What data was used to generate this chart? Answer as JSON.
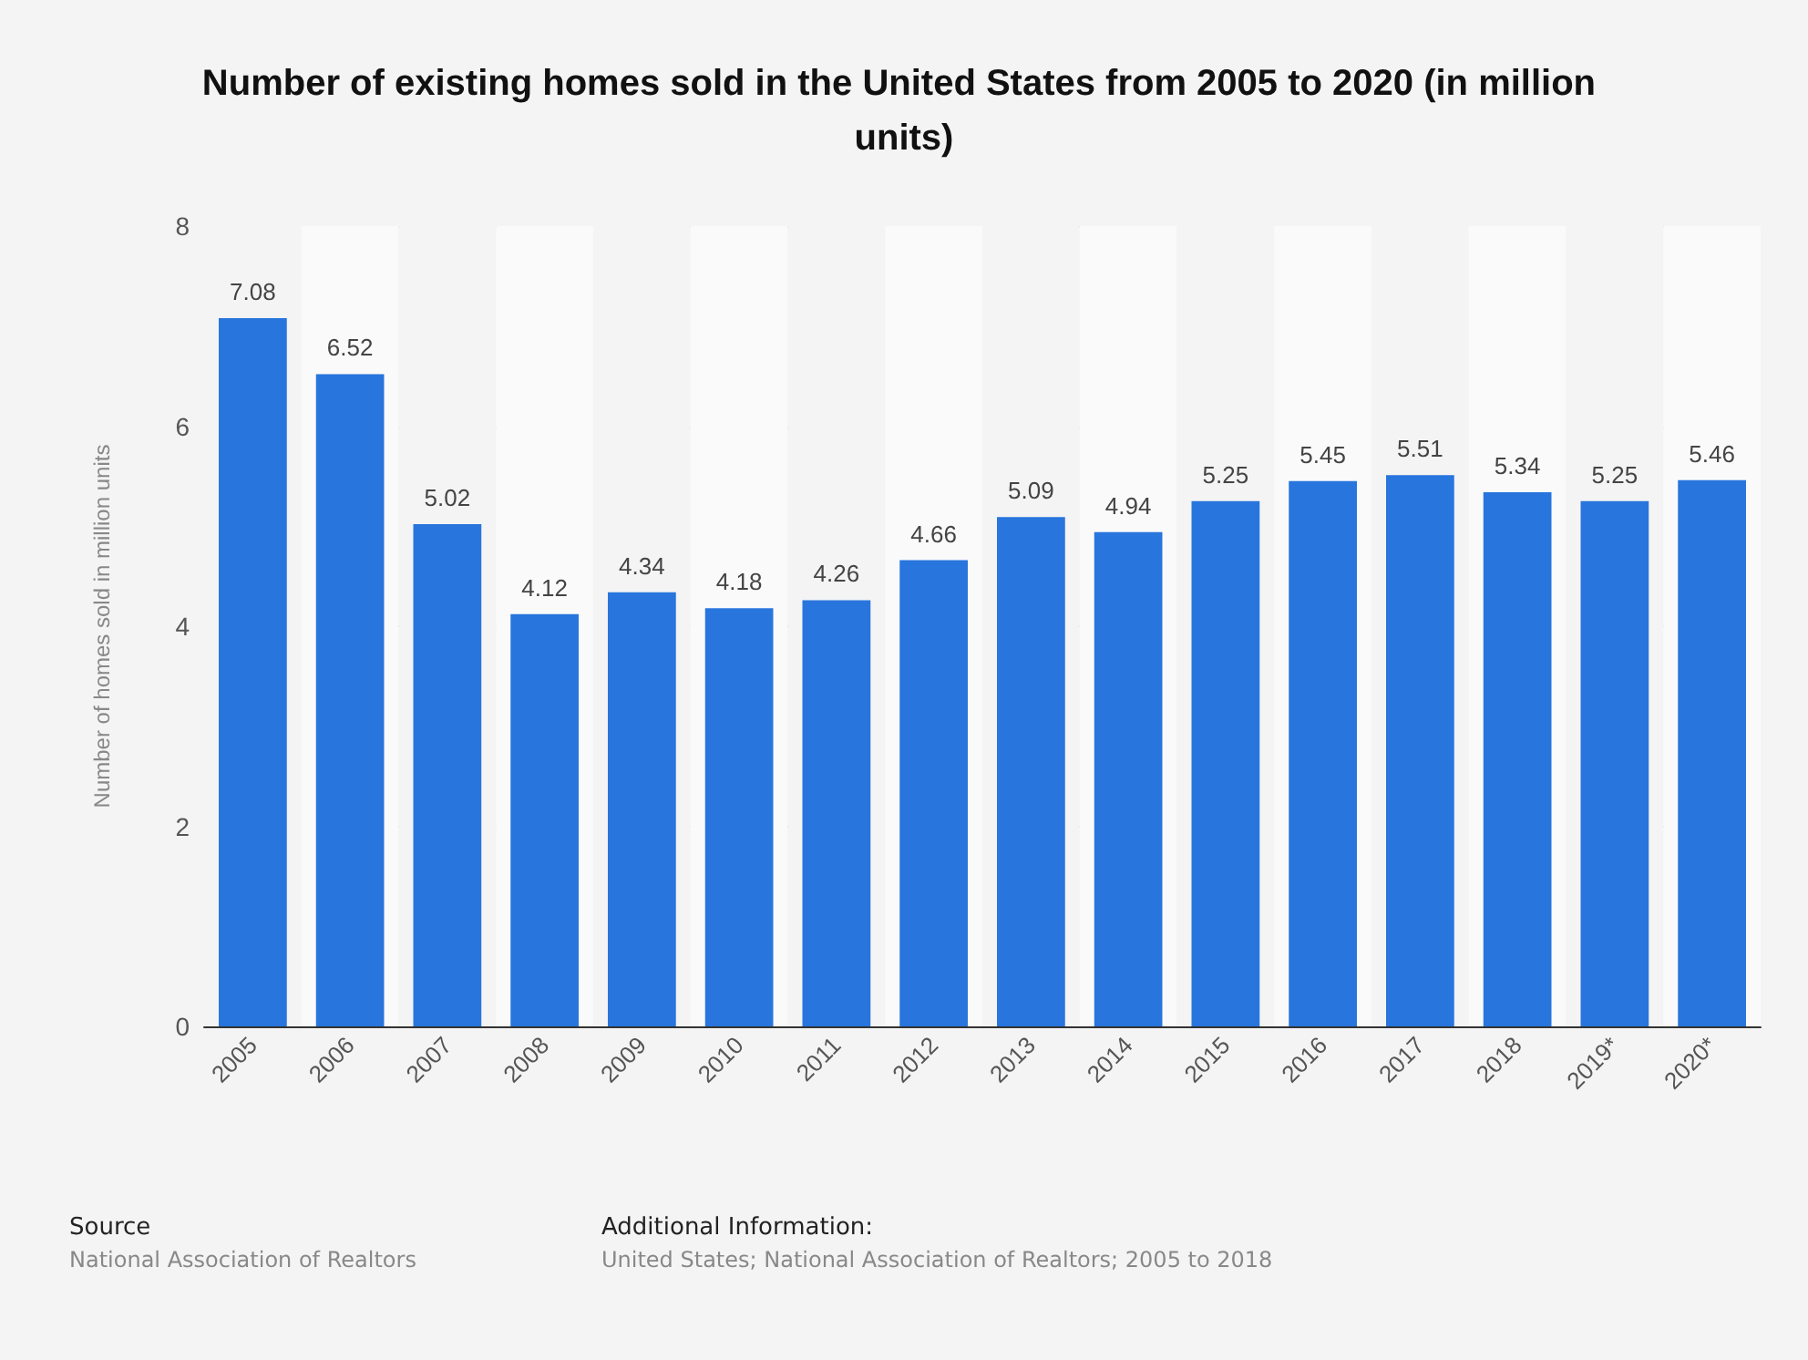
{
  "chart_data": {
    "type": "bar",
    "title": "Number of existing homes sold in the United States from 2005 to 2020 (in million units)",
    "ylabel": "Number of homes sold in million units",
    "categories": [
      "2005",
      "2006",
      "2007",
      "2008",
      "2009",
      "2010",
      "2011",
      "2012",
      "2013",
      "2014",
      "2015",
      "2016",
      "2017",
      "2018",
      "2019*",
      "2020*"
    ],
    "values": [
      7.08,
      6.52,
      5.02,
      4.12,
      4.34,
      4.18,
      4.26,
      4.66,
      5.09,
      4.94,
      5.25,
      5.45,
      5.51,
      5.34,
      5.25,
      5.46
    ],
    "color": "#2875dd",
    "ylim": [
      0,
      8
    ],
    "yticks": [
      0,
      2,
      4,
      6,
      8
    ],
    "grid": "y",
    "data_labels": true,
    "annotations": [
      "Source",
      "National Association of Realtors",
      "Additional Information:",
      "United States; National Association of Realtors; 2005 to 2018"
    ]
  }
}
